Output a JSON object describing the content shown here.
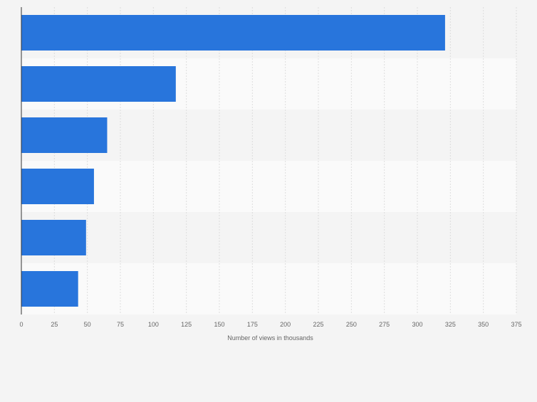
{
  "chart_data": {
    "type": "bar",
    "orientation": "horizontal",
    "categories": [
      "",
      "",
      "",
      "",
      "",
      ""
    ],
    "values": [
      321,
      117,
      65,
      55,
      49,
      43
    ],
    "title": "",
    "xlabel": "Number of views in thousands",
    "ylabel": "",
    "xlim": [
      0,
      375
    ],
    "xticks": [
      "0",
      "25",
      "50",
      "75",
      "100",
      "125",
      "150",
      "175",
      "200",
      "225",
      "250",
      "275",
      "300",
      "325",
      "350",
      "375"
    ],
    "grid": true,
    "legend": "none",
    "colors": {
      "bar": "#2875dc",
      "band_dark": "#f4f4f4",
      "band_light": "#fafafa",
      "grid": "#dddddd",
      "axis": "#333333",
      "text": "#666666",
      "background": "#f4f4f4"
    }
  }
}
